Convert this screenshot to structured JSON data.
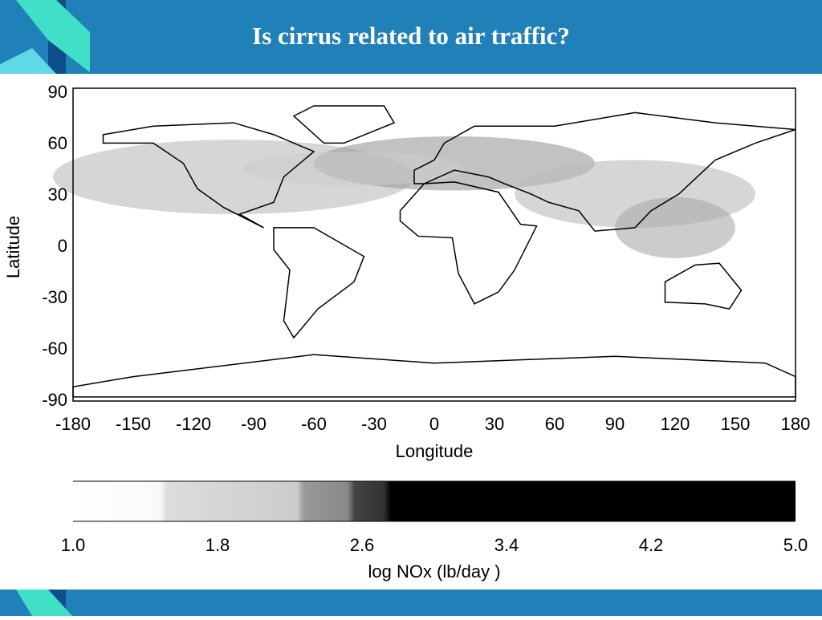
{
  "header": {
    "title": "Is cirrus related to air traffic?"
  },
  "map": {
    "y_label": "Latitude",
    "x_label": "Longitude",
    "y_ticks": [
      "90",
      "60",
      "30",
      "0",
      "-30",
      "-60",
      "-90"
    ],
    "x_ticks": [
      "-180",
      "-150",
      "-120",
      "-90",
      "-60",
      "-30",
      "0",
      "30",
      "60",
      "90",
      "120",
      "150",
      "180"
    ]
  },
  "colorbar": {
    "label": "log NOx (lb/day )",
    "ticks": [
      "1.0",
      "1.8",
      "2.6",
      "3.4",
      "4.2",
      "5.0"
    ]
  }
}
